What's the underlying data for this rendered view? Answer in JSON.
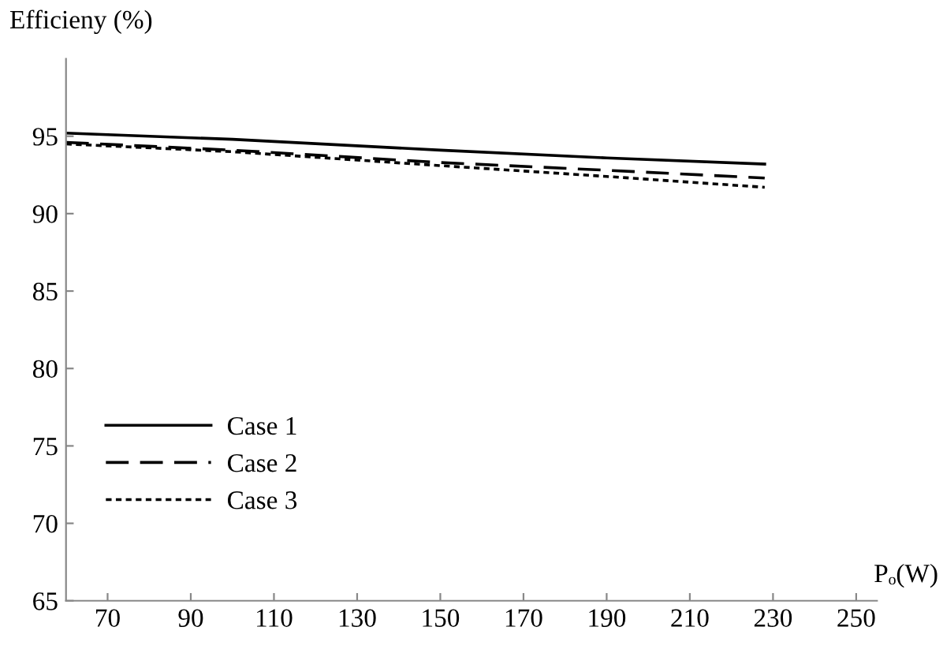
{
  "chart_data": {
    "type": "line",
    "ylabel": "Efficieny (%)",
    "xlabel": "Pₒ(W)",
    "x": [
      60,
      100,
      150,
      190,
      228
    ],
    "series": [
      {
        "name": "Case 1",
        "color": "#000000",
        "line_style": "solid",
        "values": [
          95.2,
          94.8,
          94.1,
          93.6,
          93.2
        ]
      },
      {
        "name": "Case 2",
        "color": "#000000",
        "line_style": "dashed",
        "values": [
          94.6,
          94.1,
          93.3,
          92.8,
          92.3
        ]
      },
      {
        "name": "Case 3",
        "color": "#000000",
        "line_style": "dotted",
        "values": [
          94.5,
          94.0,
          93.1,
          92.4,
          91.7
        ]
      }
    ],
    "xlim": [
      60,
      255
    ],
    "xticks": [
      70,
      90,
      110,
      130,
      150,
      170,
      190,
      210,
      230,
      250
    ],
    "ylim": [
      65,
      100
    ],
    "yticks": [
      65,
      70,
      75,
      80,
      85,
      90,
      95
    ],
    "grid": false,
    "legend": "left",
    "marker": "none"
  }
}
